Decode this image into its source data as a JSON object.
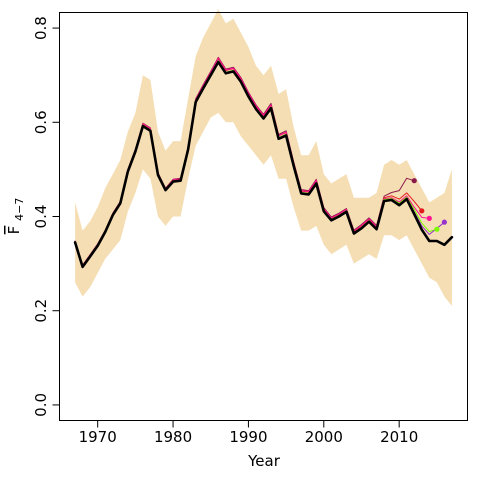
{
  "chart_data": {
    "type": "line",
    "xlabel": "Year",
    "ylabel": {
      "main": "F",
      "sub": "4−7"
    },
    "xlim": [
      1967,
      2017
    ],
    "ylim": [
      0.0,
      0.8
    ],
    "xticks": [
      1970,
      1980,
      1990,
      2000,
      2010
    ],
    "yticks": [
      "0.0",
      "0.2",
      "0.4",
      "0.6",
      "0.8"
    ],
    "grid": false,
    "legend": "none",
    "colors": {
      "band": "#f5deb3",
      "final": "#000000",
      "retro_1": "#e41a1c",
      "retro_2": "#8b1a4a",
      "points": [
        "#8b1a4a",
        "#e41a1c",
        "#ff1493",
        "#7cfc00",
        "#9932cc"
      ]
    },
    "x": [
      1967,
      1968,
      1969,
      1970,
      1971,
      1972,
      1973,
      1974,
      1975,
      1976,
      1977,
      1978,
      1979,
      1980,
      1981,
      1982,
      1983,
      1984,
      1985,
      1986,
      1987,
      1988,
      1989,
      1990,
      1991,
      1992,
      1993,
      1994,
      1995,
      1996,
      1997,
      1998,
      1999,
      2000,
      2001,
      2002,
      2003,
      2004,
      2005,
      2006,
      2007,
      2008,
      2009,
      2010,
      2011,
      2012,
      2013,
      2014,
      2015,
      2016,
      2017
    ],
    "band_upper": [
      0.43,
      0.37,
      0.39,
      0.42,
      0.46,
      0.49,
      0.52,
      0.58,
      0.62,
      0.7,
      0.69,
      0.58,
      0.54,
      0.56,
      0.56,
      0.65,
      0.74,
      0.78,
      0.81,
      0.84,
      0.81,
      0.82,
      0.79,
      0.76,
      0.72,
      0.7,
      0.72,
      0.66,
      0.67,
      0.59,
      0.53,
      0.53,
      0.56,
      0.49,
      0.47,
      0.48,
      0.49,
      0.44,
      0.44,
      0.44,
      0.45,
      0.51,
      0.52,
      0.51,
      0.52,
      0.49,
      0.46,
      0.43,
      0.44,
      0.45,
      0.5
    ],
    "band_lower": [
      0.26,
      0.23,
      0.25,
      0.28,
      0.31,
      0.33,
      0.35,
      0.41,
      0.45,
      0.5,
      0.48,
      0.4,
      0.38,
      0.4,
      0.4,
      0.48,
      0.55,
      0.58,
      0.61,
      0.62,
      0.6,
      0.6,
      0.57,
      0.55,
      0.53,
      0.51,
      0.53,
      0.48,
      0.48,
      0.42,
      0.37,
      0.37,
      0.38,
      0.34,
      0.32,
      0.33,
      0.34,
      0.3,
      0.31,
      0.32,
      0.31,
      0.36,
      0.36,
      0.35,
      0.36,
      0.33,
      0.3,
      0.27,
      0.26,
      0.23,
      0.21
    ],
    "series": [
      {
        "x": [
          1967,
          1968,
          1969,
          1970,
          1971,
          1972,
          1973,
          1974,
          1975,
          1976,
          1977,
          1978,
          1979,
          1980,
          1981,
          1982,
          1983,
          1984,
          1985,
          1986,
          1987,
          1988,
          1989,
          1990,
          1991,
          1992,
          1993,
          1994,
          1995,
          1996,
          1997,
          1998,
          1999,
          2000,
          2001,
          2002,
          2003,
          2004,
          2005,
          2006,
          2007,
          2008,
          2009,
          2010,
          2011,
          2012,
          2013,
          2014,
          2015,
          2016,
          2017
        ],
        "values": [
          0.345,
          0.293,
          0.315,
          0.338,
          0.367,
          0.403,
          0.428,
          0.495,
          0.538,
          0.592,
          0.582,
          0.488,
          0.456,
          0.474,
          0.476,
          0.542,
          0.643,
          0.672,
          0.7,
          0.728,
          0.704,
          0.708,
          0.686,
          0.655,
          0.628,
          0.608,
          0.63,
          0.565,
          0.572,
          0.508,
          0.449,
          0.447,
          0.47,
          0.411,
          0.392,
          0.4,
          0.41,
          0.364,
          0.375,
          0.389,
          0.373,
          0.433,
          0.435,
          0.424,
          0.437,
          0.405,
          0.372,
          0.348,
          0.348,
          0.34,
          0.356
        ],
        "color": "#000000",
        "width": 2.6
      },
      {
        "x": [
          1967,
          1968,
          1969,
          1970,
          1971,
          1972,
          1973,
          1974,
          1975,
          1976,
          1977,
          1978,
          1979,
          1980,
          1981,
          1982,
          1983,
          1984,
          1985,
          1986,
          1987,
          1988,
          1989,
          1990,
          1991,
          1992,
          1993,
          1994,
          1995,
          1996,
          1997,
          1998,
          1999,
          2000,
          2001,
          2002,
          2003,
          2004,
          2005,
          2006,
          2007,
          2008,
          2009,
          2010,
          2011,
          2012
        ],
        "values": [
          0.348,
          0.297,
          0.319,
          0.342,
          0.371,
          0.407,
          0.432,
          0.5,
          0.543,
          0.598,
          0.588,
          0.493,
          0.46,
          0.479,
          0.481,
          0.548,
          0.65,
          0.68,
          0.708,
          0.738,
          0.713,
          0.717,
          0.695,
          0.664,
          0.637,
          0.617,
          0.64,
          0.574,
          0.582,
          0.517,
          0.457,
          0.455,
          0.479,
          0.419,
          0.399,
          0.407,
          0.417,
          0.371,
          0.383,
          0.397,
          0.381,
          0.443,
          0.451,
          0.455,
          0.481,
          0.476
        ],
        "color": "#8b1a4a",
        "width": 1
      },
      {
        "x": [
          1967,
          1968,
          1969,
          1970,
          1971,
          1972,
          1973,
          1974,
          1975,
          1976,
          1977,
          1978,
          1979,
          1980,
          1981,
          1982,
          1983,
          1984,
          1985,
          1986,
          1987,
          1988,
          1989,
          1990,
          1991,
          1992,
          1993,
          1994,
          1995,
          1996,
          1997,
          1998,
          1999,
          2000,
          2001,
          2002,
          2003,
          2004,
          2005,
          2006,
          2007,
          2008,
          2009,
          2010,
          2011,
          2012,
          2013
        ],
        "values": [
          0.346,
          0.295,
          0.317,
          0.34,
          0.369,
          0.405,
          0.43,
          0.498,
          0.541,
          0.596,
          0.586,
          0.491,
          0.458,
          0.477,
          0.479,
          0.546,
          0.647,
          0.677,
          0.705,
          0.735,
          0.71,
          0.714,
          0.692,
          0.661,
          0.634,
          0.614,
          0.636,
          0.571,
          0.578,
          0.514,
          0.454,
          0.452,
          0.476,
          0.416,
          0.396,
          0.404,
          0.414,
          0.368,
          0.38,
          0.394,
          0.378,
          0.44,
          0.444,
          0.437,
          0.45,
          0.432,
          0.412
        ],
        "color": "#e41a1c",
        "width": 1
      },
      {
        "x": [
          1967,
          1968,
          1969,
          1970,
          1971,
          1972,
          1973,
          1974,
          1975,
          1976,
          1977,
          1978,
          1979,
          1980,
          1981,
          1982,
          1983,
          1984,
          1985,
          1986,
          1987,
          1988,
          1989,
          1990,
          1991,
          1992,
          1993,
          1994,
          1995,
          1996,
          1997,
          1998,
          1999,
          2000,
          2001,
          2002,
          2003,
          2004,
          2005,
          2006,
          2007,
          2008,
          2009,
          2010,
          2011,
          2012,
          2013,
          2014
        ],
        "values": [
          0.347,
          0.296,
          0.318,
          0.341,
          0.37,
          0.406,
          0.431,
          0.499,
          0.542,
          0.597,
          0.587,
          0.492,
          0.459,
          0.478,
          0.48,
          0.547,
          0.648,
          0.678,
          0.706,
          0.736,
          0.711,
          0.715,
          0.693,
          0.662,
          0.635,
          0.615,
          0.637,
          0.572,
          0.579,
          0.515,
          0.455,
          0.453,
          0.477,
          0.417,
          0.397,
          0.405,
          0.415,
          0.369,
          0.381,
          0.395,
          0.379,
          0.438,
          0.44,
          0.431,
          0.444,
          0.42,
          0.398,
          0.396
        ],
        "color": "#ff1493",
        "width": 1
      },
      {
        "x": [
          1967,
          1968,
          1969,
          1970,
          1971,
          1972,
          1973,
          1974,
          1975,
          1976,
          1977,
          1978,
          1979,
          1980,
          1981,
          1982,
          1983,
          1984,
          1985,
          1986,
          1987,
          1988,
          1989,
          1990,
          1991,
          1992,
          1993,
          1994,
          1995,
          1996,
          1997,
          1998,
          1999,
          2000,
          2001,
          2002,
          2003,
          2004,
          2005,
          2006,
          2007,
          2008,
          2009,
          2010,
          2011,
          2012,
          2013,
          2014,
          2015
        ],
        "values": [
          0.346,
          0.294,
          0.316,
          0.339,
          0.368,
          0.404,
          0.429,
          0.496,
          0.539,
          0.594,
          0.584,
          0.489,
          0.457,
          0.475,
          0.477,
          0.544,
          0.645,
          0.674,
          0.702,
          0.731,
          0.706,
          0.71,
          0.688,
          0.657,
          0.63,
          0.61,
          0.632,
          0.567,
          0.574,
          0.51,
          0.451,
          0.449,
          0.472,
          0.413,
          0.394,
          0.402,
          0.412,
          0.366,
          0.377,
          0.391,
          0.375,
          0.436,
          0.438,
          0.428,
          0.441,
          0.415,
          0.386,
          0.368,
          0.373
        ],
        "color": "#7cfc00",
        "width": 1
      },
      {
        "x": [
          1967,
          1968,
          1969,
          1970,
          1971,
          1972,
          1973,
          1974,
          1975,
          1976,
          1977,
          1978,
          1979,
          1980,
          1981,
          1982,
          1983,
          1984,
          1985,
          1986,
          1987,
          1988,
          1989,
          1990,
          1991,
          1992,
          1993,
          1994,
          1995,
          1996,
          1997,
          1998,
          1999,
          2000,
          2001,
          2002,
          2003,
          2004,
          2005,
          2006,
          2007,
          2008,
          2009,
          2010,
          2011,
          2012,
          2013,
          2014,
          2015,
          2016
        ],
        "values": [
          0.345,
          0.293,
          0.315,
          0.338,
          0.367,
          0.403,
          0.428,
          0.495,
          0.538,
          0.592,
          0.582,
          0.488,
          0.456,
          0.474,
          0.476,
          0.542,
          0.643,
          0.672,
          0.7,
          0.728,
          0.704,
          0.708,
          0.686,
          0.655,
          0.628,
          0.608,
          0.63,
          0.565,
          0.572,
          0.508,
          0.449,
          0.447,
          0.47,
          0.411,
          0.392,
          0.4,
          0.41,
          0.364,
          0.375,
          0.389,
          0.373,
          0.434,
          0.436,
          0.426,
          0.439,
          0.41,
          0.38,
          0.362,
          0.375,
          0.388
        ],
        "color": "#9932cc",
        "width": 1
      }
    ],
    "end_points": [
      {
        "x": 2012,
        "y": 0.476,
        "color": "#8b1a4a"
      },
      {
        "x": 2013,
        "y": 0.412,
        "color": "#e41a1c"
      },
      {
        "x": 2014,
        "y": 0.396,
        "color": "#ff1493"
      },
      {
        "x": 2015,
        "y": 0.373,
        "color": "#7cfc00"
      },
      {
        "x": 2016,
        "y": 0.388,
        "color": "#9932cc"
      }
    ]
  }
}
